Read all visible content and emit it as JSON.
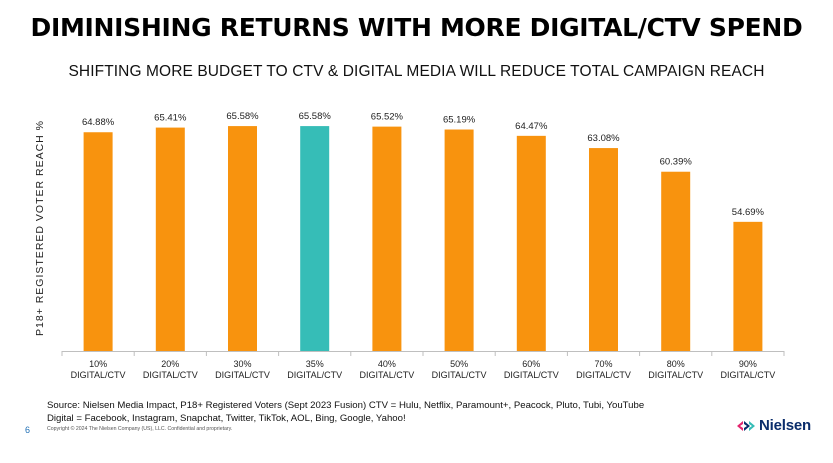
{
  "slide": {
    "title": "DIMINISHING RETURNS WITH MORE DIGITAL/CTV SPEND",
    "subtitle": "SHIFTING MORE BUDGET TO CTV & DIGITAL MEDIA WILL REDUCE TOTAL CAMPAIGN REACH",
    "source_line1": "Source: Nielsen Media Impact, P18+ Registered Voters (Sept 2023 Fusion) CTV = Hulu, Netflix, Paramount+, Peacock, Pluto, Tubi, YouTube",
    "source_line2": "Digital = Facebook, Instagram, Snapchat, Twitter, TikTok, AOL, Bing, Google, Yahoo!",
    "page_number": "6",
    "copyright": "Copyright © 2024 The Nielsen Company (US), LLC. Confidential and proprietary.",
    "brand": "Nielsen"
  },
  "colors": {
    "bar": "#F8930E",
    "highlight": "#36BDB7",
    "brand_blue": "#0B2D6B",
    "brand_pink": "#E3266F"
  },
  "chart_data": {
    "type": "bar",
    "title": "",
    "xlabel": "",
    "ylabel": "P18+ REGISTERED VOTER REACH %",
    "categories": [
      [
        "10%",
        "DIGITAL/CTV"
      ],
      [
        "20%",
        "DIGITAL/CTV"
      ],
      [
        "30%",
        "DIGITAL/CTV"
      ],
      [
        "35%",
        "DIGITAL/CTV"
      ],
      [
        "40%",
        "DIGITAL/CTV"
      ],
      [
        "50%",
        "DIGITAL/CTV"
      ],
      [
        "60%",
        "DIGITAL/CTV"
      ],
      [
        "70%",
        "DIGITAL/CTV"
      ],
      [
        "80%",
        "DIGITAL/CTV"
      ],
      [
        "90%",
        "DIGITAL/CTV"
      ]
    ],
    "values": [
      64.88,
      65.41,
      65.58,
      65.58,
      65.52,
      65.19,
      64.47,
      63.08,
      60.39,
      54.69
    ],
    "data_labels": [
      "64.88%",
      "65.41%",
      "65.58%",
      "65.58%",
      "65.52%",
      "65.19%",
      "64.47%",
      "63.08%",
      "60.39%",
      "54.69%"
    ],
    "highlight_index": 3,
    "ylim": [
      40,
      66.5
    ],
    "grid": false,
    "legend": "none"
  }
}
